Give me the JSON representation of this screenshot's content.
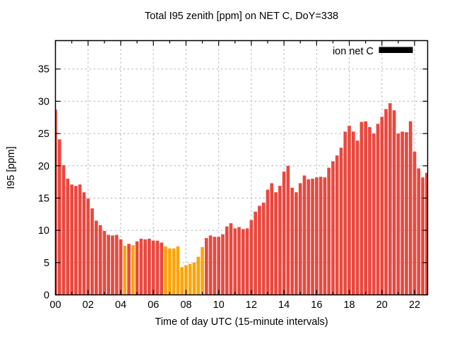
{
  "window": {
    "background": "#ffffff"
  },
  "legend": {
    "label": "ion net C",
    "swatch_color": "#000000",
    "position": "top-right-inside"
  },
  "palette": {
    "bar_red": "#e8483f",
    "bar_orange": "#fda409",
    "grid": "#b3b3b3",
    "axis": "#000000",
    "text": "#000000"
  },
  "chart_data": {
    "type": "bar",
    "title": "Total I95 zenith [ppm] on NET C, DoY=338",
    "xlabel": "Time of day UTC (15-minute intervals)",
    "ylabel": "I95 [ppm]",
    "grid": true,
    "legend_position": "top-right-inside",
    "ylim": [
      0,
      39.4
    ],
    "xlim_hours": [
      0,
      22.8
    ],
    "yticks": [
      0,
      5,
      10,
      15,
      20,
      25,
      30,
      35
    ],
    "xtick_hours": [
      0,
      2,
      4,
      6,
      8,
      10,
      12,
      14,
      16,
      18,
      20,
      22
    ],
    "xtick_labels": [
      "00",
      "02",
      "04",
      "06",
      "08",
      "10",
      "12",
      "14",
      "16",
      "18",
      "20",
      "22"
    ],
    "minor_xtick_hours": [
      1,
      3,
      5,
      7,
      9,
      11,
      13,
      15,
      17,
      19,
      21
    ],
    "interval_minutes": 15,
    "categories": [
      "00:00",
      "00:15",
      "00:30",
      "00:45",
      "01:00",
      "01:15",
      "01:30",
      "01:45",
      "02:00",
      "02:15",
      "02:30",
      "02:45",
      "03:00",
      "03:15",
      "03:30",
      "03:45",
      "04:00",
      "04:15",
      "04:30",
      "04:45",
      "05:00",
      "05:15",
      "05:30",
      "05:45",
      "06:00",
      "06:15",
      "06:30",
      "06:45",
      "07:00",
      "07:15",
      "07:30",
      "07:45",
      "08:00",
      "08:15",
      "08:30",
      "08:45",
      "09:00",
      "09:15",
      "09:30",
      "09:45",
      "10:00",
      "10:15",
      "10:30",
      "10:45",
      "11:00",
      "11:15",
      "11:30",
      "11:45",
      "12:00",
      "12:15",
      "12:30",
      "12:45",
      "13:00",
      "13:15",
      "13:30",
      "13:45",
      "14:00",
      "14:15",
      "14:30",
      "14:45",
      "15:00",
      "15:15",
      "15:30",
      "15:45",
      "16:00",
      "16:15",
      "16:30",
      "16:45",
      "17:00",
      "17:15",
      "17:30",
      "17:45",
      "18:00",
      "18:15",
      "18:30",
      "18:45",
      "19:00",
      "19:15",
      "19:30",
      "19:45",
      "20:00",
      "20:15",
      "20:30",
      "20:45",
      "21:00",
      "21:15",
      "21:30",
      "21:45",
      "22:00",
      "22:15",
      "22:30",
      "22:45"
    ],
    "values": [
      28.7,
      24.1,
      20.1,
      18.0,
      17.1,
      16.9,
      17.1,
      15.9,
      14.9,
      13.4,
      11.5,
      10.8,
      9.9,
      9.3,
      9.2,
      9.3,
      8.6,
      7.6,
      7.9,
      7.7,
      8.3,
      8.7,
      8.6,
      8.7,
      8.4,
      8.4,
      8.1,
      7.5,
      7.2,
      7.2,
      7.5,
      4.3,
      4.6,
      4.8,
      5.0,
      5.9,
      7.4,
      8.8,
      9.2,
      9.0,
      9.0,
      9.4,
      10.6,
      11.1,
      10.3,
      10.5,
      10.2,
      10.3,
      11.6,
      12.9,
      13.8,
      14.3,
      16.3,
      17.3,
      15.9,
      16.9,
      19.1,
      20.0,
      16.6,
      15.9,
      17.3,
      18.5,
      17.9,
      18.0,
      18.2,
      18.3,
      18.2,
      19.7,
      20.7,
      21.6,
      22.8,
      25.3,
      26.2,
      25.3,
      23.9,
      26.8,
      26.9,
      26.0,
      25.0,
      26.5,
      27.6,
      28.8,
      29.7,
      28.6,
      25.0,
      25.3,
      25.2,
      26.9,
      22.2,
      19.6,
      18.2,
      18.9
    ],
    "bar_colors": [
      "r",
      "r",
      "r",
      "r",
      "r",
      "r",
      "r",
      "r",
      "r",
      "r",
      "r",
      "r",
      "r",
      "r",
      "r",
      "r",
      "r",
      "o",
      "r",
      "o",
      "r",
      "r",
      "r",
      "r",
      "r",
      "r",
      "r",
      "o",
      "o",
      "o",
      "o",
      "o",
      "o",
      "o",
      "o",
      "o",
      "o",
      "r",
      "r",
      "r",
      "r",
      "r",
      "r",
      "r",
      "r",
      "r",
      "r",
      "r",
      "r",
      "r",
      "r",
      "r",
      "r",
      "r",
      "r",
      "r",
      "r",
      "r",
      "r",
      "r",
      "r",
      "r",
      "r",
      "r",
      "r",
      "r",
      "r",
      "r",
      "r",
      "r",
      "r",
      "r",
      "r",
      "r",
      "r",
      "r",
      "r",
      "r",
      "r",
      "r",
      "r",
      "r",
      "r",
      "r",
      "r",
      "r",
      "r",
      "r",
      "r",
      "r",
      "r",
      "r"
    ]
  }
}
